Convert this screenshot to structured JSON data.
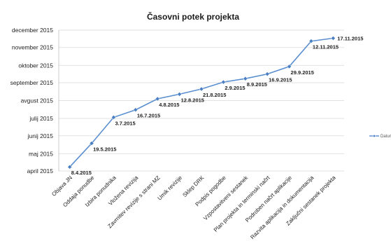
{
  "chart_data": {
    "type": "line",
    "title": "Časovni potek projekta",
    "xlabel": "",
    "ylabel": "",
    "y_axis_type": "date",
    "ylim": [
      "2015-04-01",
      "2015-12-01"
    ],
    "y_ticks": [
      {
        "value": "2015-04-01",
        "label": "april 2015"
      },
      {
        "value": "2015-05-01",
        "label": "maj 2015"
      },
      {
        "value": "2015-06-01",
        "label": "junij 2015"
      },
      {
        "value": "2015-07-01",
        "label": "julij 2015"
      },
      {
        "value": "2015-08-01",
        "label": "avgust 2015"
      },
      {
        "value": "2015-09-01",
        "label": "september 2015"
      },
      {
        "value": "2015-10-01",
        "label": "oktober 2015"
      },
      {
        "value": "2015-11-01",
        "label": "november 2015"
      },
      {
        "value": "2015-12-01",
        "label": "december 2015"
      }
    ],
    "grid": true,
    "legend_position": "right",
    "series_color": "#5b8fd0",
    "categories": [
      "Objava JN",
      "Oddaja ponudbe",
      "Izbira ponudnika",
      "Vloženа revizija",
      "Zavrnitev revizije s strani MZ",
      "Umik revizije",
      "Sklep DRK",
      "Podpis pogodbe",
      "Vzpostavitveni sestanek",
      "Plan projekta in terminski načrt",
      "Podroben načrt aplikacije",
      "Razvita aplikacija in dokumentacija",
      "Zaključni sestanek projekta"
    ],
    "series": [
      {
        "name": "Datum",
        "values": [
          "2015-04-08",
          "2015-05-19",
          "2015-07-03",
          "2015-07-16",
          "2015-08-04",
          "2015-08-12",
          "2015-08-21",
          "2015-09-02",
          "2015-09-08",
          "2015-09-16",
          "2015-09-29",
          "2015-11-12",
          "2015-11-17"
        ],
        "labels": [
          "8.4.2015",
          "19.5.2015",
          "3.7.2015",
          "16.7.2015",
          "4.8.2015",
          "12.8.2015",
          "21.8.2015",
          "2.9.2015",
          "8.9.2015",
          "16.9.2015",
          "29.9.2015",
          "12.11.2015",
          "17.11.2015"
        ]
      }
    ],
    "legend": [
      "Datum"
    ]
  }
}
